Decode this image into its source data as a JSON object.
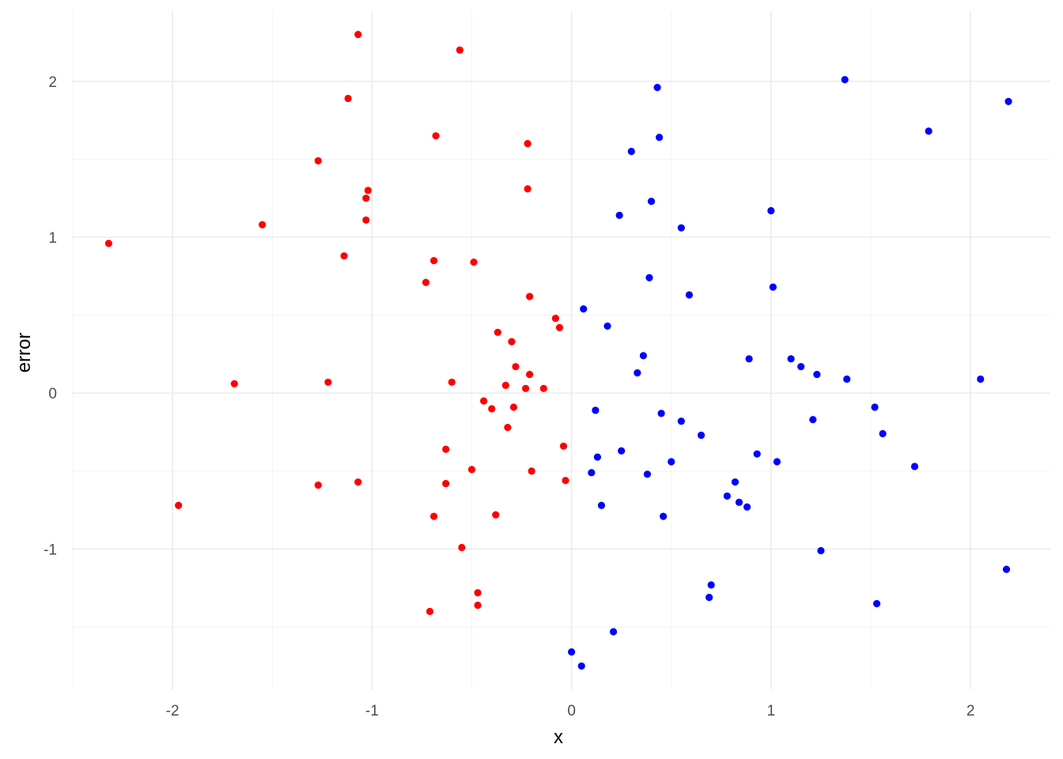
{
  "chart_data": {
    "type": "scatter",
    "xlabel": "x",
    "ylabel": "error",
    "xlim": [
      -2.5,
      2.4
    ],
    "ylim": [
      -1.9,
      2.45
    ],
    "x_ticks": [
      -2,
      -1,
      0,
      1,
      2
    ],
    "x_tick_labels": [
      "-2",
      "-1",
      "0",
      "1",
      "2"
    ],
    "y_ticks": [
      -1,
      0,
      1,
      2
    ],
    "y_tick_labels": [
      "-1",
      "0",
      "1",
      "2"
    ],
    "grid": true,
    "legend": "none",
    "colors": {
      "negative_x": "#ff0000",
      "positive_x": "#0000ff"
    },
    "series": [
      {
        "color": "#ff0000",
        "points": [
          [
            -2.32,
            0.96
          ],
          [
            -1.97,
            -0.72
          ],
          [
            -1.69,
            0.06
          ],
          [
            -1.55,
            1.08
          ],
          [
            -1.27,
            1.49
          ],
          [
            -1.27,
            -0.59
          ],
          [
            -1.22,
            0.07
          ],
          [
            -1.14,
            0.88
          ],
          [
            -1.12,
            1.89
          ],
          [
            -1.07,
            2.3
          ],
          [
            -1.07,
            -0.57
          ],
          [
            -1.03,
            1.11
          ],
          [
            -1.03,
            1.25
          ],
          [
            -1.02,
            1.3
          ],
          [
            -0.73,
            0.71
          ],
          [
            -0.71,
            -1.4
          ],
          [
            -0.69,
            -0.79
          ],
          [
            -0.69,
            0.85
          ],
          [
            -0.68,
            1.65
          ],
          [
            -0.63,
            -0.58
          ],
          [
            -0.63,
            -0.36
          ],
          [
            -0.6,
            0.07
          ],
          [
            -0.56,
            2.2
          ],
          [
            -0.55,
            -0.99
          ],
          [
            -0.49,
            0.84
          ],
          [
            -0.5,
            -0.49
          ],
          [
            -0.47,
            -1.28
          ],
          [
            -0.47,
            -1.36
          ],
          [
            -0.44,
            -0.05
          ],
          [
            -0.4,
            -0.1
          ],
          [
            -0.38,
            -0.78
          ],
          [
            -0.37,
            0.39
          ],
          [
            -0.33,
            0.05
          ],
          [
            -0.32,
            -0.22
          ],
          [
            -0.3,
            0.33
          ],
          [
            -0.29,
            -0.09
          ],
          [
            -0.28,
            0.17
          ],
          [
            -0.23,
            0.03
          ],
          [
            -0.22,
            1.31
          ],
          [
            -0.22,
            1.6
          ],
          [
            -0.21,
            0.62
          ],
          [
            -0.21,
            0.12
          ],
          [
            -0.2,
            -0.5
          ],
          [
            -0.14,
            0.03
          ],
          [
            -0.08,
            0.48
          ],
          [
            -0.06,
            0.42
          ],
          [
            -0.04,
            -0.34
          ],
          [
            -0.03,
            -0.56
          ]
        ]
      },
      {
        "color": "#0000ff",
        "points": [
          [
            0.0,
            -1.66
          ],
          [
            0.05,
            -1.75
          ],
          [
            0.06,
            0.54
          ],
          [
            0.1,
            -0.51
          ],
          [
            0.12,
            -0.11
          ],
          [
            0.13,
            -0.41
          ],
          [
            0.15,
            -0.72
          ],
          [
            0.18,
            0.43
          ],
          [
            0.21,
            -1.53
          ],
          [
            0.24,
            1.14
          ],
          [
            0.25,
            -0.37
          ],
          [
            0.3,
            1.55
          ],
          [
            0.33,
            0.13
          ],
          [
            0.36,
            0.24
          ],
          [
            0.38,
            -0.52
          ],
          [
            0.39,
            0.74
          ],
          [
            0.4,
            1.23
          ],
          [
            0.43,
            1.96
          ],
          [
            0.44,
            1.64
          ],
          [
            0.45,
            -0.13
          ],
          [
            0.46,
            -0.79
          ],
          [
            0.5,
            -0.44
          ],
          [
            0.55,
            -0.18
          ],
          [
            0.55,
            1.06
          ],
          [
            0.59,
            0.63
          ],
          [
            0.65,
            -0.27
          ],
          [
            0.69,
            -1.31
          ],
          [
            0.7,
            -1.23
          ],
          [
            0.78,
            -0.66
          ],
          [
            0.82,
            -0.57
          ],
          [
            0.84,
            -0.7
          ],
          [
            0.88,
            -0.73
          ],
          [
            0.89,
            0.22
          ],
          [
            0.93,
            -0.39
          ],
          [
            1.0,
            1.17
          ],
          [
            1.01,
            0.68
          ],
          [
            1.03,
            -0.44
          ],
          [
            1.1,
            0.22
          ],
          [
            1.15,
            0.17
          ],
          [
            1.21,
            -0.17
          ],
          [
            1.23,
            0.12
          ],
          [
            1.25,
            -1.01
          ],
          [
            1.37,
            2.01
          ],
          [
            1.38,
            0.09
          ],
          [
            1.52,
            -0.09
          ],
          [
            1.53,
            -1.35
          ],
          [
            1.56,
            -0.26
          ],
          [
            1.72,
            -0.47
          ],
          [
            1.79,
            1.68
          ],
          [
            2.05,
            0.09
          ],
          [
            2.18,
            -1.13
          ],
          [
            2.19,
            1.87
          ]
        ]
      }
    ]
  }
}
